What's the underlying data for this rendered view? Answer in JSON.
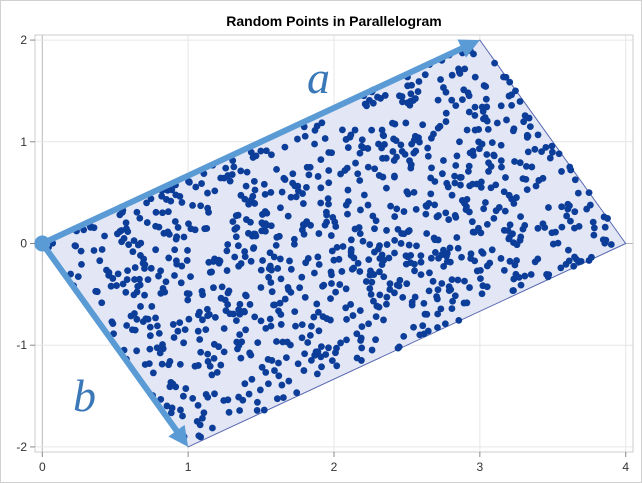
{
  "chart_data": {
    "type": "scatter",
    "title": "Random Points in Parallelogram",
    "xlabel": "",
    "ylabel": "",
    "xlim": [
      -0.05,
      4.05
    ],
    "ylim": [
      -2.05,
      2.05
    ],
    "xticks": [
      "0",
      "1",
      "2",
      "3",
      "4"
    ],
    "yticks": [
      "-2",
      "-1",
      "0",
      "1",
      "2"
    ],
    "grid": true,
    "vectors": [
      {
        "label": "a",
        "from": [
          0,
          0
        ],
        "to": [
          3,
          2
        ]
      },
      {
        "label": "b",
        "from": [
          0,
          0
        ],
        "to": [
          1,
          -2
        ]
      }
    ],
    "region_vertices": [
      [
        0,
        0
      ],
      [
        3,
        2
      ],
      [
        4,
        0
      ],
      [
        1,
        -2
      ]
    ],
    "sample": {
      "count": 1000,
      "formula": "x = u*a + v*b",
      "u_range": [
        0,
        1
      ],
      "v_range": [
        0,
        1
      ],
      "seed": 20
    },
    "colors": {
      "points": "#0b3d99",
      "region_fill": "#e3e6f4",
      "region_edge": "#5566b0",
      "vectors": "#5b9bd5",
      "vector_labels": "#3a78b8",
      "grid": "#e6e6e6",
      "zero_line": "#b8b8b8"
    }
  }
}
